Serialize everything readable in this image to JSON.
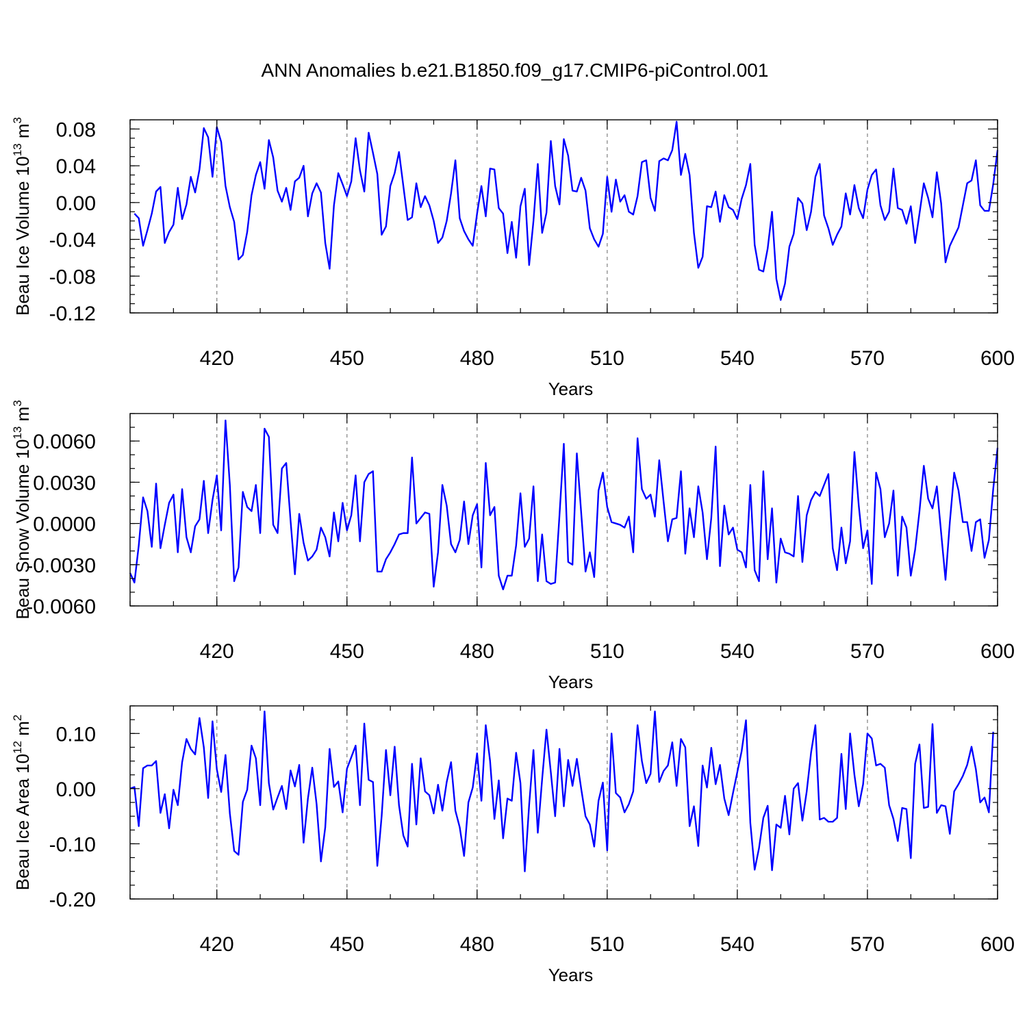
{
  "title": "ANN Anomalies b.e21.B1850.f09_g17.CMIP6-piControl.001",
  "chart_data": [
    {
      "type": "line",
      "xlabel": "Years",
      "ylabel": "Beau Ice Volume 10",
      "ylabel_exp": "13",
      "ylabel_unit": " m",
      "ylabel_unit_exp": "3",
      "xlim": [
        400,
        600
      ],
      "ylim": [
        -0.12,
        0.09
      ],
      "xticks": [
        "420",
        "450",
        "480",
        "510",
        "540",
        "570",
        "600"
      ],
      "xtick_values": [
        420,
        450,
        480,
        510,
        540,
        570,
        600
      ],
      "yticks": [
        "0.08",
        "0.04",
        "0.00",
        "-0.04",
        "-0.08",
        "-0.12"
      ],
      "ytick_values": [
        0.08,
        0.04,
        0.0,
        -0.04,
        -0.08,
        -0.12
      ],
      "grid": "dashed vertical at major x ticks",
      "color": "#0000ff",
      "x_start": 401,
      "values": [
        -0.012,
        -0.017,
        -0.047,
        -0.03,
        -0.012,
        0.012,
        0.017,
        -0.044,
        -0.032,
        -0.024,
        0.016,
        -0.018,
        -0.002,
        0.028,
        0.011,
        0.036,
        0.081,
        0.071,
        0.028,
        0.082,
        0.066,
        0.018,
        -0.005,
        -0.021,
        -0.062,
        -0.057,
        -0.032,
        0.008,
        0.03,
        0.044,
        0.015,
        0.068,
        0.049,
        0.013,
        0.001,
        0.016,
        -0.008,
        0.023,
        0.027,
        0.04,
        -0.015,
        0.01,
        0.021,
        0.011,
        -0.044,
        -0.072,
        -0.003,
        0.032,
        0.02,
        0.007,
        0.023,
        0.07,
        0.035,
        0.012,
        0.076,
        0.054,
        0.031,
        -0.035,
        -0.026,
        0.018,
        0.032,
        0.055,
        0.018,
        -0.019,
        -0.016,
        0.021,
        -0.005,
        0.007,
        -0.003,
        -0.02,
        -0.044,
        -0.038,
        -0.02,
        0.01,
        0.046,
        -0.017,
        -0.031,
        -0.04,
        -0.047,
        -0.012,
        0.018,
        -0.015,
        0.037,
        0.036,
        -0.006,
        -0.012,
        -0.055,
        -0.021,
        -0.06,
        -0.004,
        0.015,
        -0.068,
        -0.02,
        0.042,
        -0.033,
        -0.011,
        0.067,
        0.018,
        -0.002,
        0.069,
        0.051,
        0.013,
        0.012,
        0.027,
        0.013,
        -0.028,
        -0.04,
        -0.048,
        -0.034,
        0.028,
        -0.01,
        0.025,
        0.001,
        0.008,
        -0.01,
        -0.013,
        0.007,
        0.044,
        0.046,
        0.005,
        -0.009,
        0.045,
        0.048,
        0.046,
        0.057,
        0.088,
        0.03,
        0.053,
        0.03,
        -0.033,
        -0.071,
        -0.059,
        -0.004,
        -0.005,
        0.012,
        -0.021,
        0.008,
        -0.005,
        -0.008,
        -0.018,
        0.004,
        0.019,
        0.042,
        -0.046,
        -0.073,
        -0.075,
        -0.05,
        -0.01,
        -0.083,
        -0.106,
        -0.088,
        -0.048,
        -0.034,
        0.005,
        -0.001,
        -0.03,
        -0.01,
        0.028,
        0.042,
        -0.014,
        -0.028,
        -0.046,
        -0.035,
        -0.026,
        0.01,
        -0.013,
        0.019,
        -0.006,
        -0.017,
        0.014,
        0.03,
        0.036,
        -0.003,
        -0.019,
        -0.01,
        0.037,
        -0.006,
        -0.008,
        -0.023,
        -0.004,
        -0.044,
        -0.012,
        0.021,
        0.005,
        -0.016,
        0.033,
        -0.001,
        -0.065,
        -0.047,
        -0.037,
        -0.027,
        -0.003,
        0.021,
        0.024,
        0.046,
        -0.003,
        -0.009,
        -0.009,
        0.02,
        0.057
      ]
    },
    {
      "type": "line",
      "xlabel": "Years",
      "ylabel": "Beau Snow Volume 10",
      "ylabel_exp": "13",
      "ylabel_unit": " m",
      "ylabel_unit_exp": "3",
      "xlim": [
        400,
        600
      ],
      "ylim": [
        -0.006,
        0.008
      ],
      "xticks": [
        "420",
        "450",
        "480",
        "510",
        "540",
        "570",
        "600"
      ],
      "xtick_values": [
        420,
        450,
        480,
        510,
        540,
        570,
        600
      ],
      "yticks": [
        "0.0060",
        "0.0030",
        "0.0000",
        "-0.0030",
        "-0.0060"
      ],
      "ytick_values": [
        0.006,
        0.003,
        0.0,
        -0.003,
        -0.006
      ],
      "grid": "dashed vertical at major x ticks",
      "color": "#0000ff",
      "x_start": 400,
      "values": [
        -0.0036,
        -0.0043,
        -0.0016,
        0.0019,
        0.0009,
        -0.0017,
        0.0029,
        -0.0018,
        -0.0001,
        0.0015,
        0.0021,
        -0.0021,
        0.0025,
        -0.001,
        -0.0021,
        -0.0002,
        0.0003,
        0.0031,
        -0.0007,
        0.0017,
        0.0035,
        -0.0005,
        0.0075,
        0.0028,
        -0.0042,
        -0.0032,
        0.0023,
        0.0012,
        0.0009,
        0.0028,
        -0.0007,
        0.0069,
        0.0063,
        -0.0001,
        -0.0007,
        0.004,
        0.0044,
        0.0002,
        -0.0037,
        0.0007,
        -0.0014,
        -0.0027,
        -0.0024,
        -0.0019,
        -0.0003,
        -0.001,
        -0.0024,
        0.0008,
        -0.0013,
        0.0015,
        -0.0005,
        0.0006,
        0.0035,
        -0.0013,
        0.003,
        0.0036,
        0.0038,
        -0.0035,
        -0.0035,
        -0.0026,
        -0.0021,
        -0.0015,
        -0.0008,
        -0.0007,
        -0.0007,
        0.0048,
        0.0,
        0.0004,
        0.0008,
        0.0007,
        -0.0046,
        -0.0021,
        0.0028,
        0.0013,
        -0.0015,
        -0.0021,
        -0.0012,
        0.0016,
        -0.0015,
        0.0006,
        0.0014,
        -0.0032,
        0.0044,
        0.0006,
        0.0012,
        -0.0038,
        -0.0048,
        -0.0038,
        -0.0038,
        -0.0016,
        0.0022,
        -0.0017,
        -0.0011,
        0.0027,
        -0.0042,
        -0.0008,
        -0.0042,
        -0.0044,
        -0.0043,
        0.0006,
        0.0058,
        -0.0028,
        -0.003,
        0.0051,
        0.0008,
        -0.0035,
        -0.0021,
        -0.0039,
        0.0024,
        0.0037,
        0.0012,
        0.0001,
        0.0,
        -0.0001,
        -0.0003,
        0.0005,
        -0.0021,
        0.0062,
        0.0025,
        0.0018,
        0.0021,
        0.0005,
        0.0046,
        0.0016,
        -0.0013,
        0.0003,
        0.0004,
        0.0038,
        -0.0022,
        0.0011,
        -0.001,
        0.0027,
        0.0008,
        -0.0026,
        0.0004,
        0.0056,
        -0.0031,
        0.0013,
        -0.0008,
        -0.0003,
        -0.0019,
        -0.0021,
        -0.0032,
        0.0028,
        -0.0034,
        -0.0042,
        0.0038,
        -0.0026,
        0.0011,
        -0.0043,
        -0.0011,
        -0.0021,
        -0.0022,
        -0.0024,
        0.002,
        -0.0028,
        0.0006,
        0.0017,
        0.0023,
        0.002,
        0.0028,
        0.0036,
        -0.0018,
        -0.0034,
        -0.0003,
        -0.0029,
        -0.0013,
        0.0052,
        0.0013,
        -0.0018,
        -0.0005,
        -0.0044,
        0.0037,
        0.0025,
        -0.001,
        0.0,
        0.0024,
        -0.0038,
        0.0005,
        -0.0003,
        -0.0038,
        -0.0019,
        0.0009,
        0.0042,
        0.0018,
        0.0011,
        0.0027,
        -0.0007,
        -0.0041,
        0.0001,
        0.0037,
        0.0024,
        0.0001,
        0.0001,
        -0.002,
        0.0001,
        0.0003,
        -0.0025,
        -0.0012,
        0.0025,
        0.0055
      ]
    },
    {
      "type": "line",
      "xlabel": "Years",
      "ylabel": "Beau Ice Area 10",
      "ylabel_exp": "12",
      "ylabel_unit": " m",
      "ylabel_unit_exp": "2",
      "xlim": [
        400,
        600
      ],
      "ylim": [
        -0.2,
        0.15
      ],
      "xticks": [
        "420",
        "450",
        "480",
        "510",
        "540",
        "570",
        "600"
      ],
      "xtick_values": [
        420,
        450,
        480,
        510,
        540,
        570,
        600
      ],
      "yticks": [
        "0.10",
        "0.00",
        "-0.10",
        "-0.20"
      ],
      "ytick_values": [
        0.1,
        0.0,
        -0.1,
        -0.2
      ],
      "grid": "dashed vertical at major x ticks",
      "color": "#0000ff",
      "x_start": 400,
      "values": [
        0.0,
        0.003,
        -0.068,
        0.037,
        0.042,
        0.042,
        0.05,
        -0.044,
        -0.01,
        -0.072,
        -0.002,
        -0.03,
        0.048,
        0.09,
        0.072,
        0.062,
        0.128,
        0.075,
        -0.017,
        0.122,
        0.035,
        -0.006,
        0.061,
        -0.045,
        -0.113,
        -0.12,
        -0.024,
        -0.002,
        0.078,
        0.055,
        -0.03,
        0.14,
        0.01,
        -0.038,
        -0.016,
        0.005,
        -0.037,
        0.033,
        0.004,
        0.043,
        -0.098,
        -0.018,
        0.038,
        -0.028,
        -0.132,
        -0.07,
        0.072,
        0.003,
        0.013,
        -0.043,
        0.036,
        0.057,
        0.078,
        -0.03,
        0.118,
        0.016,
        0.012,
        -0.14,
        -0.05,
        0.07,
        -0.012,
        0.076,
        -0.03,
        -0.085,
        -0.105,
        0.045,
        -0.065,
        0.055,
        -0.005,
        -0.012,
        -0.045,
        0.007,
        -0.04,
        0.012,
        0.048,
        -0.04,
        -0.07,
        -0.122,
        -0.025,
        0.002,
        0.064,
        -0.022,
        0.115,
        0.05,
        -0.055,
        0.015,
        -0.09,
        -0.018,
        -0.022,
        0.065,
        0.01,
        -0.15,
        -0.03,
        0.07,
        -0.08,
        0.017,
        0.107,
        0.03,
        -0.05,
        0.072,
        -0.032,
        0.052,
        0.005,
        0.054,
        0.0,
        -0.05,
        -0.065,
        -0.105,
        -0.022,
        0.011,
        -0.112,
        0.1,
        -0.008,
        -0.016,
        -0.043,
        -0.028,
        -0.005,
        0.115,
        0.05,
        0.01,
        0.027,
        0.14,
        0.012,
        0.032,
        0.042,
        0.084,
        0.005,
        0.09,
        0.075,
        -0.068,
        -0.032,
        -0.104,
        0.042,
        0.002,
        0.074,
        0.008,
        0.043,
        -0.018,
        -0.048,
        -0.008,
        0.03,
        0.068,
        0.124,
        -0.062,
        -0.147,
        -0.108,
        -0.053,
        -0.031,
        -0.148,
        -0.065,
        -0.071,
        -0.013,
        -0.083,
        0.0,
        0.01,
        -0.058,
        -0.005,
        0.065,
        0.115,
        -0.056,
        -0.053,
        -0.06,
        -0.06,
        -0.053,
        0.063,
        -0.037,
        0.1,
        0.025,
        -0.032,
        0.008,
        0.1,
        0.091,
        0.042,
        0.045,
        0.038,
        -0.03,
        -0.055,
        -0.095,
        -0.035,
        -0.037,
        -0.126,
        0.045,
        0.08,
        -0.035,
        -0.033,
        0.117,
        -0.044,
        -0.03,
        -0.032,
        -0.082,
        -0.005,
        0.008,
        0.023,
        0.043,
        0.076,
        0.035,
        -0.025,
        -0.016,
        -0.043,
        0.103
      ]
    }
  ]
}
